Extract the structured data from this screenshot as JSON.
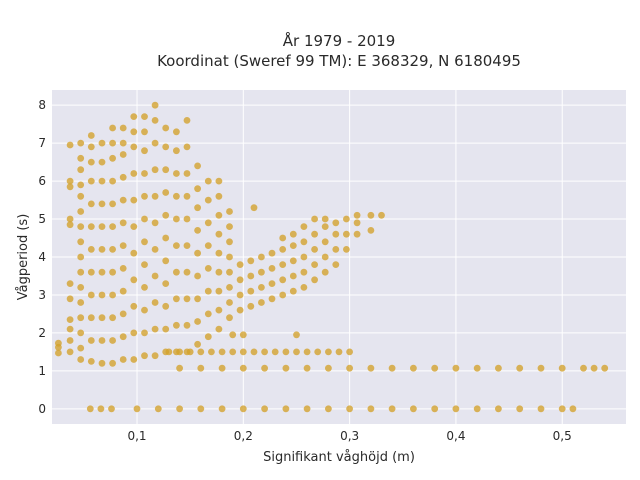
{
  "chart_data": {
    "type": "scatter",
    "title_line1": "År 1979 - 2019",
    "title_line2": "Koordinat (Sweref 99 TM): E 368329, N 6180495",
    "xlabel": "Signifikant våghöjd (m)",
    "ylabel": "Vågperiod (s)",
    "xlim": [
      0.02,
      0.56
    ],
    "ylim": [
      -0.4,
      8.4
    ],
    "xticks": [
      0.1,
      0.2,
      0.3,
      0.4,
      0.5
    ],
    "xtick_labels": [
      "0,1",
      "0,2",
      "0,3",
      "0,4",
      "0,5"
    ],
    "yticks": [
      0,
      1,
      2,
      3,
      4,
      5,
      6,
      7,
      8
    ],
    "ytick_labels": [
      "0",
      "1",
      "2",
      "3",
      "4",
      "5",
      "6",
      "7",
      "8"
    ],
    "grid": true,
    "legend": "none",
    "marker_color": "#D4A12A",
    "background_color": "#E5E5EF",
    "series": [
      {
        "points": [
          [
            0.026,
            1.47
          ],
          [
            0.026,
            1.62
          ],
          [
            0.026,
            1.73
          ],
          [
            0.037,
            1.5
          ],
          [
            0.037,
            1.8
          ],
          [
            0.037,
            2.1
          ],
          [
            0.037,
            2.35
          ],
          [
            0.037,
            2.9
          ],
          [
            0.037,
            3.3
          ],
          [
            0.037,
            4.85
          ],
          [
            0.037,
            5.0
          ],
          [
            0.037,
            5.85
          ],
          [
            0.037,
            6.0
          ],
          [
            0.037,
            6.95
          ],
          [
            0.047,
            1.3
          ],
          [
            0.047,
            1.6
          ],
          [
            0.047,
            2.0
          ],
          [
            0.047,
            2.4
          ],
          [
            0.047,
            2.8
          ],
          [
            0.047,
            3.2
          ],
          [
            0.047,
            3.6
          ],
          [
            0.047,
            4.0
          ],
          [
            0.047,
            4.4
          ],
          [
            0.047,
            4.8
          ],
          [
            0.047,
            5.2
          ],
          [
            0.047,
            5.6
          ],
          [
            0.047,
            5.9
          ],
          [
            0.047,
            6.3
          ],
          [
            0.047,
            6.6
          ],
          [
            0.047,
            7.0
          ],
          [
            0.057,
            1.25
          ],
          [
            0.057,
            1.8
          ],
          [
            0.057,
            2.4
          ],
          [
            0.057,
            3.0
          ],
          [
            0.057,
            3.6
          ],
          [
            0.057,
            4.2
          ],
          [
            0.057,
            4.8
          ],
          [
            0.057,
            5.4
          ],
          [
            0.057,
            6.0
          ],
          [
            0.057,
            6.5
          ],
          [
            0.057,
            6.9
          ],
          [
            0.057,
            7.2
          ],
          [
            0.067,
            1.2
          ],
          [
            0.067,
            1.8
          ],
          [
            0.067,
            2.4
          ],
          [
            0.067,
            3.0
          ],
          [
            0.067,
            3.6
          ],
          [
            0.067,
            4.2
          ],
          [
            0.067,
            4.8
          ],
          [
            0.067,
            5.4
          ],
          [
            0.067,
            6.0
          ],
          [
            0.067,
            6.5
          ],
          [
            0.067,
            7.0
          ],
          [
            0.077,
            1.2
          ],
          [
            0.077,
            1.8
          ],
          [
            0.077,
            2.4
          ],
          [
            0.077,
            3.0
          ],
          [
            0.077,
            3.6
          ],
          [
            0.077,
            4.2
          ],
          [
            0.077,
            4.8
          ],
          [
            0.077,
            5.4
          ],
          [
            0.077,
            6.0
          ],
          [
            0.077,
            6.6
          ],
          [
            0.077,
            7.0
          ],
          [
            0.077,
            7.4
          ],
          [
            0.087,
            1.3
          ],
          [
            0.087,
            1.9
          ],
          [
            0.087,
            2.5
          ],
          [
            0.087,
            3.1
          ],
          [
            0.087,
            3.7
          ],
          [
            0.087,
            4.3
          ],
          [
            0.087,
            4.9
          ],
          [
            0.087,
            5.5
          ],
          [
            0.087,
            6.1
          ],
          [
            0.087,
            6.7
          ],
          [
            0.087,
            7.0
          ],
          [
            0.087,
            7.4
          ],
          [
            0.097,
            1.3
          ],
          [
            0.097,
            2.0
          ],
          [
            0.097,
            2.7
          ],
          [
            0.097,
            3.4
          ],
          [
            0.097,
            4.1
          ],
          [
            0.097,
            4.8
          ],
          [
            0.097,
            5.5
          ],
          [
            0.097,
            6.2
          ],
          [
            0.097,
            6.9
          ],
          [
            0.097,
            7.3
          ],
          [
            0.097,
            7.7
          ],
          [
            0.107,
            1.4
          ],
          [
            0.107,
            2.0
          ],
          [
            0.107,
            2.6
          ],
          [
            0.107,
            3.2
          ],
          [
            0.107,
            3.8
          ],
          [
            0.107,
            4.4
          ],
          [
            0.107,
            5.0
          ],
          [
            0.107,
            5.6
          ],
          [
            0.107,
            6.2
          ],
          [
            0.107,
            6.8
          ],
          [
            0.107,
            7.3
          ],
          [
            0.107,
            7.7
          ],
          [
            0.117,
            1.4
          ],
          [
            0.117,
            2.1
          ],
          [
            0.117,
            2.8
          ],
          [
            0.117,
            3.5
          ],
          [
            0.117,
            4.2
          ],
          [
            0.117,
            4.9
          ],
          [
            0.117,
            5.6
          ],
          [
            0.117,
            6.3
          ],
          [
            0.117,
            7.0
          ],
          [
            0.117,
            7.6
          ],
          [
            0.117,
            8.0
          ],
          [
            0.127,
            1.5
          ],
          [
            0.127,
            2.1
          ],
          [
            0.127,
            2.7
          ],
          [
            0.127,
            3.3
          ],
          [
            0.127,
            3.9
          ],
          [
            0.127,
            4.5
          ],
          [
            0.127,
            5.1
          ],
          [
            0.127,
            5.7
          ],
          [
            0.127,
            6.3
          ],
          [
            0.127,
            6.9
          ],
          [
            0.127,
            7.4
          ],
          [
            0.137,
            1.5
          ],
          [
            0.137,
            2.2
          ],
          [
            0.137,
            2.9
          ],
          [
            0.137,
            3.6
          ],
          [
            0.137,
            4.3
          ],
          [
            0.137,
            5.0
          ],
          [
            0.137,
            5.6
          ],
          [
            0.137,
            6.2
          ],
          [
            0.137,
            6.8
          ],
          [
            0.137,
            7.3
          ],
          [
            0.147,
            1.5
          ],
          [
            0.147,
            2.2
          ],
          [
            0.147,
            2.9
          ],
          [
            0.147,
            3.6
          ],
          [
            0.147,
            4.3
          ],
          [
            0.147,
            5.0
          ],
          [
            0.147,
            5.6
          ],
          [
            0.147,
            6.2
          ],
          [
            0.147,
            6.9
          ],
          [
            0.147,
            7.6
          ],
          [
            0.157,
            1.7
          ],
          [
            0.157,
            2.3
          ],
          [
            0.157,
            2.9
          ],
          [
            0.157,
            3.5
          ],
          [
            0.157,
            4.1
          ],
          [
            0.157,
            4.7
          ],
          [
            0.157,
            5.3
          ],
          [
            0.157,
            5.8
          ],
          [
            0.157,
            6.4
          ],
          [
            0.167,
            1.9
          ],
          [
            0.167,
            2.5
          ],
          [
            0.167,
            3.1
          ],
          [
            0.167,
            3.7
          ],
          [
            0.167,
            4.3
          ],
          [
            0.167,
            4.9
          ],
          [
            0.167,
            5.5
          ],
          [
            0.167,
            6.0
          ],
          [
            0.177,
            2.1
          ],
          [
            0.177,
            2.6
          ],
          [
            0.177,
            3.1
          ],
          [
            0.177,
            3.6
          ],
          [
            0.177,
            4.1
          ],
          [
            0.177,
            4.6
          ],
          [
            0.177,
            5.1
          ],
          [
            0.177,
            5.6
          ],
          [
            0.177,
            6.0
          ],
          [
            0.187,
            2.4
          ],
          [
            0.187,
            2.8
          ],
          [
            0.187,
            3.2
          ],
          [
            0.187,
            3.6
          ],
          [
            0.187,
            4.0
          ],
          [
            0.187,
            4.4
          ],
          [
            0.187,
            4.8
          ],
          [
            0.187,
            5.2
          ],
          [
            0.197,
            2.6
          ],
          [
            0.197,
            3.0
          ],
          [
            0.197,
            3.4
          ],
          [
            0.197,
            3.8
          ],
          [
            0.207,
            2.7
          ],
          [
            0.207,
            3.1
          ],
          [
            0.207,
            3.5
          ],
          [
            0.207,
            3.9
          ],
          [
            0.217,
            2.8
          ],
          [
            0.217,
            3.2
          ],
          [
            0.217,
            3.6
          ],
          [
            0.217,
            4.0
          ],
          [
            0.227,
            2.9
          ],
          [
            0.227,
            3.3
          ],
          [
            0.227,
            3.7
          ],
          [
            0.227,
            4.1
          ],
          [
            0.237,
            3.0
          ],
          [
            0.237,
            3.4
          ],
          [
            0.237,
            3.8
          ],
          [
            0.237,
            4.2
          ],
          [
            0.237,
            4.5
          ],
          [
            0.247,
            3.1
          ],
          [
            0.247,
            3.5
          ],
          [
            0.247,
            3.9
          ],
          [
            0.247,
            4.3
          ],
          [
            0.247,
            4.6
          ],
          [
            0.257,
            3.2
          ],
          [
            0.257,
            3.6
          ],
          [
            0.257,
            4.0
          ],
          [
            0.257,
            4.4
          ],
          [
            0.257,
            4.8
          ],
          [
            0.267,
            3.4
          ],
          [
            0.267,
            3.8
          ],
          [
            0.267,
            4.2
          ],
          [
            0.267,
            4.6
          ],
          [
            0.267,
            5.0
          ],
          [
            0.277,
            3.6
          ],
          [
            0.277,
            4.0
          ],
          [
            0.277,
            4.4
          ],
          [
            0.277,
            4.8
          ],
          [
            0.277,
            5.0
          ],
          [
            0.287,
            3.8
          ],
          [
            0.287,
            4.2
          ],
          [
            0.287,
            4.6
          ],
          [
            0.287,
            4.9
          ],
          [
            0.297,
            4.2
          ],
          [
            0.297,
            4.6
          ],
          [
            0.297,
            5.0
          ],
          [
            0.307,
            4.6
          ],
          [
            0.307,
            4.9
          ],
          [
            0.307,
            5.1
          ],
          [
            0.32,
            4.7
          ],
          [
            0.32,
            5.1
          ],
          [
            0.33,
            5.1
          ],
          [
            0.19,
            1.95
          ],
          [
            0.2,
            1.95
          ],
          [
            0.25,
            1.95
          ],
          [
            0.21,
            5.3
          ],
          [
            0.13,
            1.5
          ],
          [
            0.14,
            1.5
          ],
          [
            0.15,
            1.5
          ],
          [
            0.16,
            1.5
          ],
          [
            0.17,
            1.5
          ],
          [
            0.18,
            1.5
          ],
          [
            0.19,
            1.5
          ],
          [
            0.2,
            1.5
          ],
          [
            0.21,
            1.5
          ],
          [
            0.22,
            1.5
          ],
          [
            0.23,
            1.5
          ],
          [
            0.24,
            1.5
          ],
          [
            0.25,
            1.5
          ],
          [
            0.26,
            1.5
          ],
          [
            0.27,
            1.5
          ],
          [
            0.28,
            1.5
          ],
          [
            0.29,
            1.5
          ],
          [
            0.3,
            1.5
          ],
          [
            0.14,
            1.07
          ],
          [
            0.16,
            1.07
          ],
          [
            0.18,
            1.07
          ],
          [
            0.2,
            1.07
          ],
          [
            0.22,
            1.07
          ],
          [
            0.24,
            1.07
          ],
          [
            0.26,
            1.07
          ],
          [
            0.28,
            1.07
          ],
          [
            0.3,
            1.07
          ],
          [
            0.32,
            1.07
          ],
          [
            0.34,
            1.07
          ],
          [
            0.36,
            1.07
          ],
          [
            0.38,
            1.07
          ],
          [
            0.4,
            1.07
          ],
          [
            0.42,
            1.07
          ],
          [
            0.44,
            1.07
          ],
          [
            0.46,
            1.07
          ],
          [
            0.48,
            1.07
          ],
          [
            0.5,
            1.07
          ],
          [
            0.52,
            1.07
          ],
          [
            0.53,
            1.07
          ],
          [
            0.54,
            1.07
          ],
          [
            0.056,
            0
          ],
          [
            0.066,
            0
          ],
          [
            0.076,
            0
          ],
          [
            0.1,
            0
          ],
          [
            0.12,
            0
          ],
          [
            0.14,
            0
          ],
          [
            0.16,
            0
          ],
          [
            0.18,
            0
          ],
          [
            0.2,
            0
          ],
          [
            0.22,
            0
          ],
          [
            0.24,
            0
          ],
          [
            0.26,
            0
          ],
          [
            0.28,
            0
          ],
          [
            0.3,
            0
          ],
          [
            0.32,
            0
          ],
          [
            0.34,
            0
          ],
          [
            0.36,
            0
          ],
          [
            0.38,
            0
          ],
          [
            0.4,
            0
          ],
          [
            0.42,
            0
          ],
          [
            0.44,
            0
          ],
          [
            0.46,
            0
          ],
          [
            0.48,
            0
          ],
          [
            0.5,
            0
          ],
          [
            0.51,
            0
          ]
        ]
      }
    ]
  }
}
